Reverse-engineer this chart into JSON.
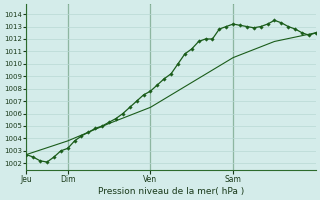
{
  "background_color": "#d4ecea",
  "grid_color": "#b8d8d4",
  "plot_bg": "#d4ecea",
  "line_color": "#1a5c1a",
  "ylabel_ticks": [
    1002,
    1003,
    1004,
    1005,
    1006,
    1007,
    1008,
    1009,
    1010,
    1011,
    1012,
    1013,
    1014
  ],
  "xlabel": "Pression niveau de la mer( hPa )",
  "xtick_labels": [
    "Jeu",
    "Dim",
    "Ven",
    "Sam"
  ],
  "xtick_positions": [
    0,
    24,
    72,
    120
  ],
  "total_points": 168,
  "ylim_min": 1001.5,
  "ylim_max": 1014.8,
  "line1_x": [
    0,
    4,
    8,
    12,
    16,
    20,
    24,
    28,
    32,
    36,
    40,
    44,
    48,
    52,
    56,
    60,
    64,
    68,
    72,
    76,
    80,
    84,
    88,
    92,
    96,
    100,
    104,
    108,
    112,
    116,
    120,
    124,
    128,
    132,
    136,
    140,
    144,
    148,
    152,
    156,
    160,
    164,
    168
  ],
  "line1_y": [
    1002.7,
    1002.5,
    1002.2,
    1002.1,
    1002.5,
    1003.0,
    1003.2,
    1003.8,
    1004.2,
    1004.5,
    1004.8,
    1005.0,
    1005.3,
    1005.6,
    1006.0,
    1006.5,
    1007.0,
    1007.5,
    1007.8,
    1008.3,
    1008.8,
    1009.2,
    1010.0,
    1010.8,
    1011.2,
    1011.8,
    1012.0,
    1012.0,
    1012.8,
    1013.0,
    1013.2,
    1013.1,
    1013.0,
    1012.9,
    1013.0,
    1013.2,
    1013.5,
    1013.3,
    1013.0,
    1012.8,
    1012.5,
    1012.3,
    1012.5
  ],
  "line2_x": [
    0,
    24,
    48,
    72,
    96,
    120,
    144,
    168
  ],
  "line2_y": [
    1002.7,
    1003.8,
    1005.2,
    1006.5,
    1008.5,
    1010.5,
    1011.8,
    1012.5
  ],
  "vline_color": "#2d6b2d",
  "tick_color": "#1a3a1a",
  "xlabel_color": "#1a3a1a"
}
